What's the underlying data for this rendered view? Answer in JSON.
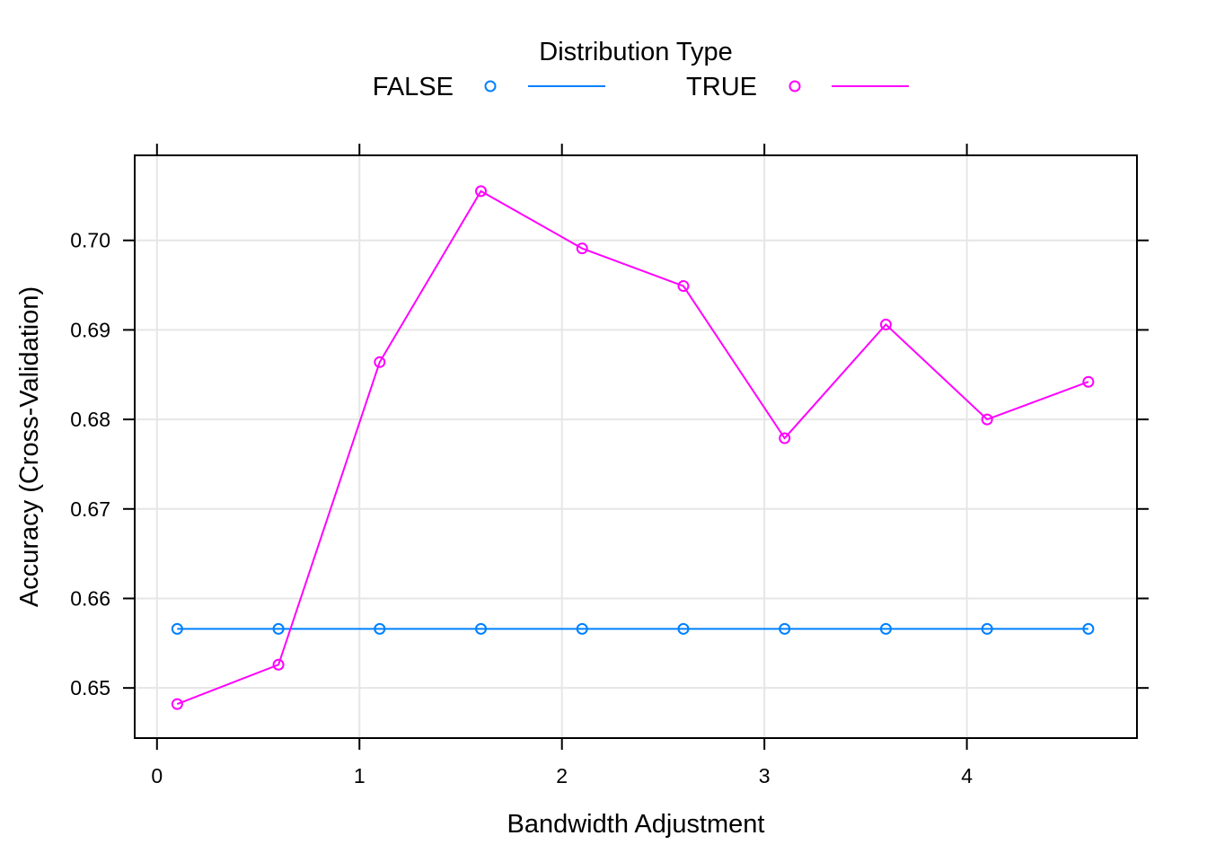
{
  "chart_data": {
    "type": "line",
    "title": "",
    "xlabel": "Bandwidth Adjustment",
    "ylabel": "Accuracy (Cross-Validation)",
    "xlim": [
      -0.11,
      4.84
    ],
    "ylim": [
      0.6444,
      0.7095
    ],
    "xticks": [
      "0",
      "1",
      "2",
      "3",
      "4"
    ],
    "yticks": [
      "0.65",
      "0.66",
      "0.67",
      "0.68",
      "0.69",
      "0.70"
    ],
    "grid": true,
    "legend": {
      "title": "Distribution Type",
      "position": "top"
    },
    "x": [
      0.1,
      0.6,
      1.1,
      1.6,
      2.1,
      2.6,
      3.1,
      3.6,
      4.1,
      4.6
    ],
    "series": [
      {
        "name": "FALSE",
        "color": "#0080ff",
        "values": [
          0.6566,
          0.6566,
          0.6566,
          0.6566,
          0.6566,
          0.6566,
          0.6566,
          0.6566,
          0.6566,
          0.6566
        ]
      },
      {
        "name": "TRUE",
        "color": "#ff00ff",
        "values": [
          0.6482,
          0.6526,
          0.6864,
          0.7055,
          0.6991,
          0.6949,
          0.6779,
          0.6906,
          0.68,
          0.6842
        ]
      }
    ]
  }
}
